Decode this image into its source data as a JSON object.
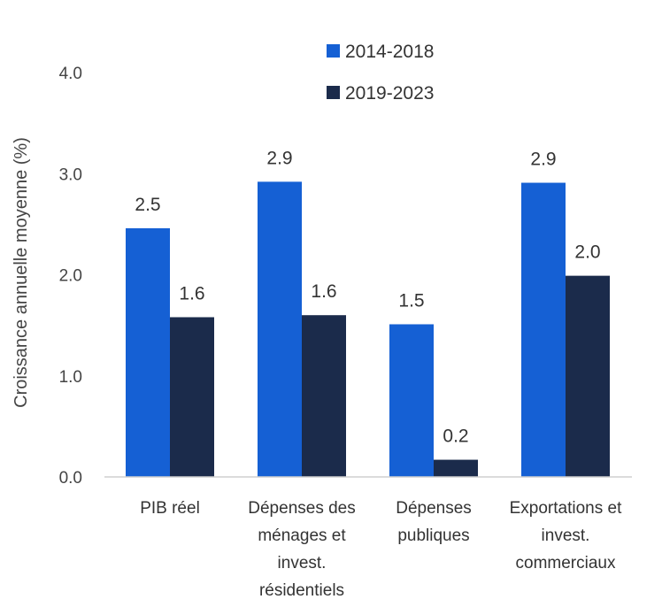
{
  "chart_data": {
    "type": "bar",
    "title": "",
    "ylabel": "Croissance annuelle moyenne (%)",
    "xlabel": "",
    "ylim": [
      0,
      4
    ],
    "yticks": [
      "0.0",
      "1.0",
      "2.0",
      "3.0",
      "4.0"
    ],
    "grid": false,
    "legend_position": "top",
    "categories": [
      [
        "PIB réel"
      ],
      [
        "Dépenses des",
        "ménages et",
        "invest.",
        "résidentiels"
      ],
      [
        "Dépenses",
        "publiques"
      ],
      [
        "Exportations et",
        "invest.",
        "commerciaux"
      ]
    ],
    "series": [
      {
        "name": "2014-2018",
        "color": "#1560d4",
        "values": [
          2.46,
          2.92,
          1.51,
          2.91
        ],
        "labels": [
          "2.5",
          "2.9",
          "1.5",
          "2.9"
        ]
      },
      {
        "name": "2019-2023",
        "color": "#1b2b4b",
        "values": [
          1.58,
          1.6,
          0.17,
          1.99
        ],
        "labels": [
          "1.6",
          "1.6",
          "0.2",
          "2.0"
        ]
      }
    ]
  }
}
